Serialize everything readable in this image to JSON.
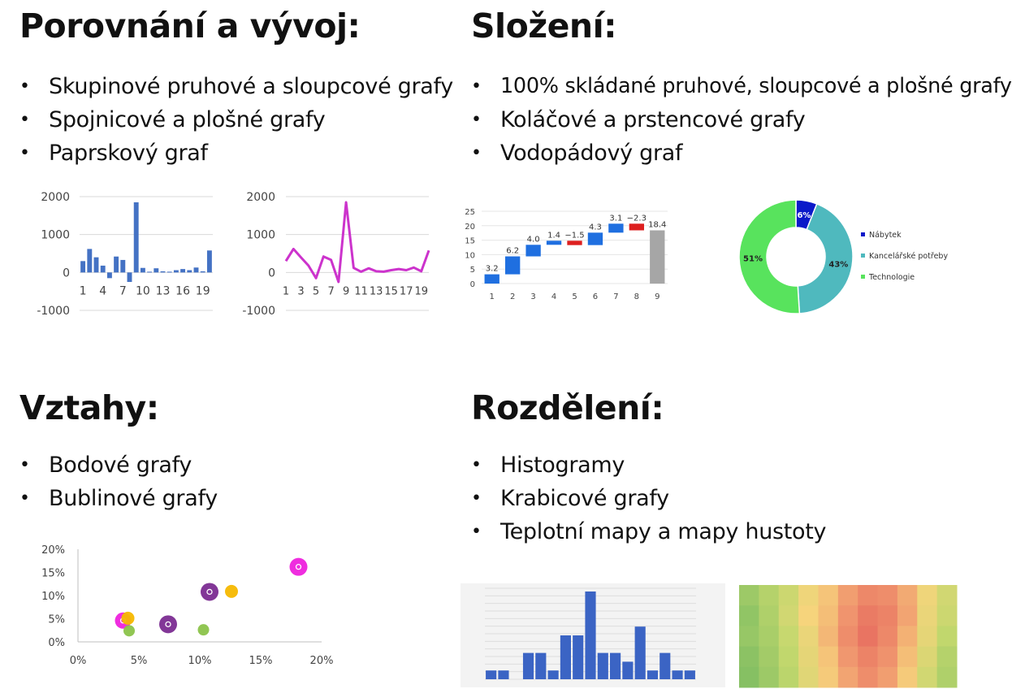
{
  "sections": {
    "comparison": {
      "title": "Porovnání a vývoj:",
      "items": [
        "Skupinové pruhové a sloupcové grafy",
        "Spojnicové a plošné grafy",
        "Paprskový graf"
      ]
    },
    "composition": {
      "title": "Složení:",
      "items": [
        "100% skládané pruhové, sloupcové a plošné grafy",
        "Koláčové a prstencové grafy",
        "Vodopádový graf"
      ]
    },
    "relations": {
      "title": "Vztahy:",
      "items": [
        "Bodové grafy",
        "Bublinové grafy"
      ]
    },
    "distribution": {
      "title": "Rozdělení:",
      "items": [
        "Histogramy",
        "Krabicové grafy",
        "Teplotní mapy a mapy hustoty"
      ]
    }
  },
  "chart_data": [
    {
      "id": "bar",
      "type": "bar",
      "x": [
        1,
        2,
        3,
        4,
        5,
        6,
        7,
        8,
        9,
        10,
        11,
        12,
        13,
        14,
        15,
        16,
        17,
        18,
        19,
        20
      ],
      "x_tick_labels": [
        "1",
        "4",
        "7",
        "10",
        "13",
        "16",
        "19"
      ],
      "values": [
        300,
        620,
        400,
        180,
        -150,
        420,
        330,
        -250,
        1850,
        120,
        20,
        110,
        30,
        20,
        60,
        90,
        60,
        130,
        30,
        580
      ],
      "y_ticks": [
        "2000",
        "1000",
        "0",
        "-1000"
      ],
      "ylim": [
        -1000,
        2000
      ],
      "color": "#4472c4",
      "grid": true
    },
    {
      "id": "line",
      "type": "line",
      "x": [
        1,
        2,
        3,
        4,
        5,
        6,
        7,
        8,
        9,
        10,
        11,
        12,
        13,
        14,
        15,
        16,
        17,
        18,
        19,
        20
      ],
      "x_tick_labels": [
        "1",
        "3",
        "5",
        "7",
        "9",
        "11",
        "13",
        "15",
        "17",
        "19"
      ],
      "values": [
        300,
        620,
        400,
        180,
        -150,
        420,
        330,
        -250,
        1850,
        120,
        20,
        110,
        30,
        20,
        60,
        90,
        60,
        130,
        30,
        580
      ],
      "y_ticks": [
        "2000",
        "1000",
        "0",
        "-1000"
      ],
      "ylim": [
        -1000,
        2000
      ],
      "color": "#cc33cc",
      "grid": true
    },
    {
      "id": "waterfall",
      "type": "bar",
      "subtype": "waterfall",
      "categories": [
        "1",
        "2",
        "3",
        "4",
        "5",
        "6",
        "7",
        "8",
        "9"
      ],
      "values": [
        3.2,
        6.2,
        4.0,
        1.4,
        -1.5,
        4.3,
        3.1,
        -2.3,
        18.4
      ],
      "value_labels": [
        "3.2",
        "6.2",
        "4.0",
        "1.4",
        "−1.5",
        "4.3",
        "3.1",
        "−2.3",
        "18.4"
      ],
      "y_ticks": [
        "25",
        "20",
        "15",
        "10",
        "5",
        "0"
      ],
      "ylim": [
        0,
        25
      ],
      "colors": {
        "increase": "#1f6fe0",
        "decrease": "#dd1f1f",
        "total": "#a6a6a6"
      },
      "grid": true
    },
    {
      "id": "donut",
      "type": "pie",
      "subtype": "donut",
      "slices": [
        {
          "label": "Nábytek",
          "value": 6,
          "text": "6%",
          "color": "#0b19c9"
        },
        {
          "label": "Kancelářské potřeby",
          "value": 43,
          "text": "43%",
          "color": "#4fb9be"
        },
        {
          "label": "Technologie",
          "value": 51,
          "text": "51%",
          "color": "#58e35d"
        }
      ],
      "legend": "right"
    },
    {
      "id": "bubble",
      "type": "scatter",
      "subtype": "bubble",
      "x_ticks": [
        "0%",
        "5%",
        "10%",
        "15%",
        "20%"
      ],
      "y_ticks": [
        "20%",
        "15%",
        "10%",
        "5%",
        "0%"
      ],
      "xlim": [
        0,
        20
      ],
      "ylim": [
        0,
        20
      ],
      "points": [
        {
          "x": 3.7,
          "y": 4.6,
          "r": 10,
          "color": "#ee22dd",
          "ring": true
        },
        {
          "x": 4.1,
          "y": 5.1,
          "r": 8,
          "color": "#f5b800",
          "ring": false
        },
        {
          "x": 4.2,
          "y": 2.4,
          "r": 7,
          "color": "#8bc34a",
          "ring": false
        },
        {
          "x": 7.4,
          "y": 3.8,
          "r": 11,
          "color": "#7b2c91",
          "ring": true
        },
        {
          "x": 10.3,
          "y": 2.6,
          "r": 7,
          "color": "#8bc34a",
          "ring": false
        },
        {
          "x": 10.8,
          "y": 10.8,
          "r": 11,
          "color": "#7b2c91",
          "ring": true
        },
        {
          "x": 12.6,
          "y": 10.9,
          "r": 8,
          "color": "#f5b800",
          "ring": false
        },
        {
          "x": 18.1,
          "y": 16.2,
          "r": 11,
          "color": "#ee22dd",
          "ring": true
        }
      ],
      "grid": false
    },
    {
      "id": "histogram",
      "type": "bar",
      "subtype": "histogram",
      "values": [
        1,
        1,
        0,
        3,
        3,
        1,
        5,
        5,
        10,
        3,
        3,
        2,
        6,
        1,
        3,
        1,
        1
      ],
      "color": "#3b64c4",
      "grid": true
    },
    {
      "id": "heatmap",
      "type": "heatmap",
      "rows": 5,
      "cols": 11,
      "values": [
        [
          0.22,
          0.3,
          0.38,
          0.52,
          0.6,
          0.72,
          0.8,
          0.78,
          0.68,
          0.52,
          0.4
        ],
        [
          0.18,
          0.28,
          0.4,
          0.55,
          0.62,
          0.75,
          0.85,
          0.82,
          0.7,
          0.5,
          0.38
        ],
        [
          0.2,
          0.26,
          0.36,
          0.5,
          0.64,
          0.78,
          0.88,
          0.8,
          0.66,
          0.48,
          0.34
        ],
        [
          0.16,
          0.24,
          0.34,
          0.48,
          0.6,
          0.74,
          0.82,
          0.76,
          0.62,
          0.44,
          0.3
        ],
        [
          0.14,
          0.22,
          0.32,
          0.46,
          0.58,
          0.7,
          0.78,
          0.72,
          0.58,
          0.4,
          0.28
        ]
      ]
    }
  ]
}
